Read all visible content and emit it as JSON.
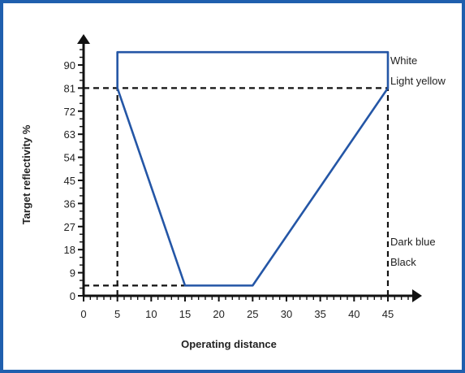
{
  "chart_data": {
    "type": "line",
    "title": "",
    "xlabel": "Operating distance",
    "ylabel": "Target reflectivity  %",
    "xlim": [
      0,
      45
    ],
    "ylim": [
      0,
      90
    ],
    "x_ticks": [
      0,
      5,
      10,
      15,
      20,
      25,
      30,
      35,
      40,
      45
    ],
    "y_ticks": [
      0,
      9,
      18,
      27,
      36,
      45,
      54,
      63,
      72,
      81,
      90
    ],
    "y_top": 95,
    "series": [
      {
        "x": [
          5,
          5,
          45,
          45,
          25,
          15,
          5
        ],
        "y": [
          81,
          95,
          95,
          81,
          4,
          4,
          81
        ],
        "color": "#2456a6"
      }
    ],
    "reference_lines": {
      "x": [
        5,
        45
      ],
      "y": [
        81,
        4
      ],
      "style": "dashed"
    },
    "annotations": {
      "white": "White",
      "light_yellow": "Light yellow",
      "dark_blue": "Dark blue",
      "black": "Black"
    },
    "grid": false,
    "colors": {
      "frame": "#1f5fae",
      "series": "#2456a6",
      "axis": "#111111"
    }
  }
}
